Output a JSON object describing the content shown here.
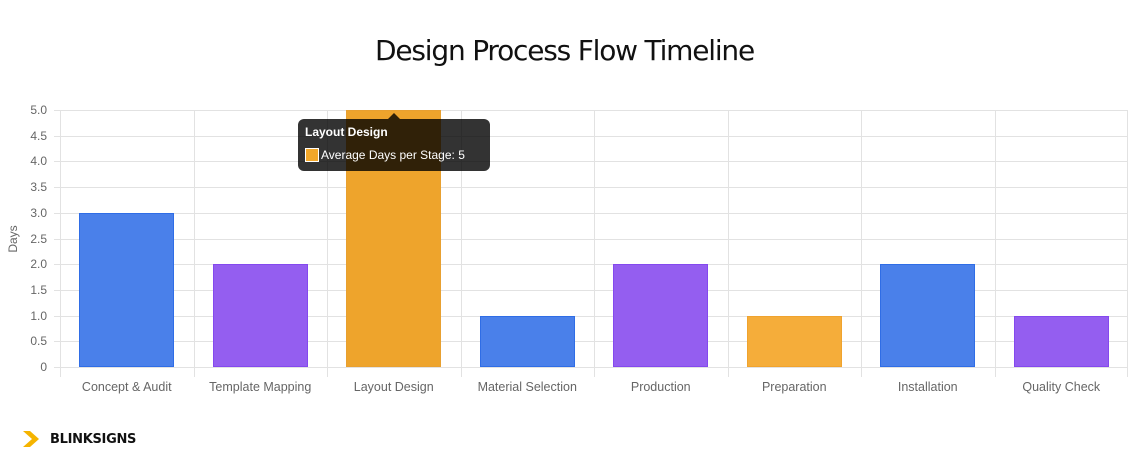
{
  "title": "Design Process Flow Timeline",
  "brand": {
    "name": "BLINKSIGNS",
    "icon": "chevron-right-icon",
    "color": "#f5b400"
  },
  "tooltip": {
    "title": "Layout Design",
    "label": "Average Days per Stage: 5",
    "swatch_color": "#f2a72a"
  },
  "y_ticks": [
    "5.0",
    "4.5",
    "4.0",
    "3.5",
    "3.0",
    "2.5",
    "2.0",
    "1.5",
    "1.0",
    "0.5",
    "0"
  ],
  "chart_data": {
    "type": "bar",
    "title": "Design Process Flow Timeline",
    "xlabel": "",
    "ylabel": "Days",
    "ylim": [
      0,
      5
    ],
    "grid": true,
    "legend": "none",
    "categories": [
      "Concept & Audit",
      "Template Mapping",
      "Layout Design",
      "Material Selection",
      "Production",
      "Preparation",
      "Installation",
      "Quality Check"
    ],
    "series": [
      {
        "name": "Average Days per Stage",
        "values": [
          3,
          2,
          5,
          1,
          2,
          1,
          2,
          1
        ]
      }
    ],
    "colors": [
      "#4a80ea",
      "#945ef0",
      "#eea42c",
      "#4a80ea",
      "#945ef0",
      "#f5ad3a",
      "#4a80ea",
      "#945ef0"
    ],
    "border_colors": [
      "#2f6de6",
      "#8449ee",
      "#e8a030",
      "#2f6de6",
      "#8449ee",
      "#f0a32e",
      "#2f6de6",
      "#8449ee"
    ]
  }
}
